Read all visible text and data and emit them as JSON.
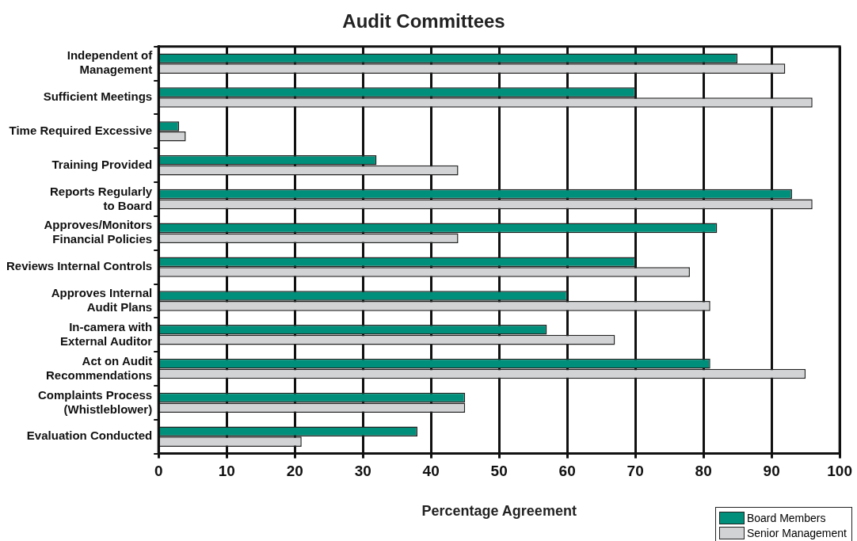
{
  "chart_data": {
    "type": "bar",
    "orientation": "horizontal",
    "title": "Audit Committees",
    "xlabel": "Percentage Agreement",
    "categories": [
      "Independent of\nManagement",
      "Sufficient Meetings",
      "Time Required Excessive",
      "Training Provided",
      "Reports Regularly\nto Board",
      "Approves/Monitors\nFinancial Policies",
      "Reviews Internal Controls",
      "Approves Internal\nAudit Plans",
      "In-camera with\nExternal Auditor",
      "Act on Audit\nRecommendations",
      "Complaints Process\n(Whistleblower)",
      "Evaluation Conducted"
    ],
    "series": [
      {
        "name": "Board Members",
        "color": "#008f7a",
        "values": [
          85,
          70,
          3,
          32,
          93,
          82,
          70,
          60,
          57,
          81,
          45,
          38
        ]
      },
      {
        "name": "Senior Management",
        "color": "#d2d3d5",
        "values": [
          92,
          96,
          4,
          44,
          96,
          44,
          78,
          81,
          67,
          95,
          45,
          21
        ]
      }
    ],
    "xlim": [
      0,
      100
    ],
    "xticks": [
      0,
      10,
      20,
      30,
      40,
      50,
      60,
      70,
      80,
      90,
      100
    ],
    "grid": "x",
    "legend": "bottom right"
  }
}
